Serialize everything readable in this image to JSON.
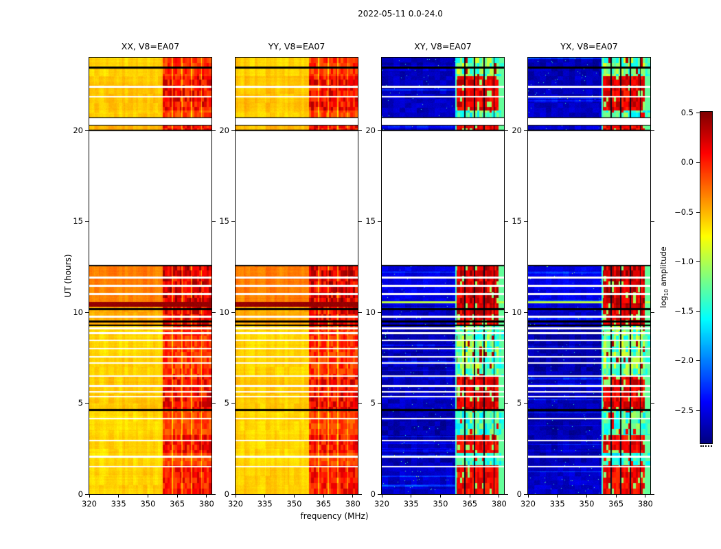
{
  "title": "2022-05-11 0.0-24.0",
  "axes": {
    "xlabel": "frequency (MHz)",
    "ylabel": "UT (hours)"
  },
  "colorbar_label": {
    "prefix": "log",
    "sub": "10",
    "suffix": " amplitude"
  },
  "chart_data": {
    "type": "heatmap",
    "title": "2022-05-11 0.0-24.0",
    "xlabel": "frequency (MHz)",
    "ylabel": "UT (hours)",
    "x": {
      "range": [
        320,
        382.5
      ],
      "ticks": [
        320,
        335,
        350,
        365,
        380
      ],
      "unit": "MHz"
    },
    "y": {
      "range": [
        0,
        24
      ],
      "ticks": [
        0,
        5,
        10,
        15,
        20
      ],
      "unit": "hours"
    },
    "colorbar": {
      "label": "log10 amplitude",
      "tick_labels": [
        "0.5",
        "0.0",
        "−0.5",
        "−1.0",
        "−1.5",
        "−2.0",
        "−2.5"
      ],
      "tick_values": [
        0.5,
        0.0,
        -0.5,
        -1.0,
        -1.5,
        -2.0,
        -2.5
      ],
      "range_top": 0.51,
      "range_bottom": -2.83,
      "colormap": "jet"
    },
    "panels": [
      {
        "id": "XX",
        "title": "XX, V8=EA07",
        "style": "warm",
        "seed": 1
      },
      {
        "id": "YY",
        "title": "YY, V8=EA07",
        "style": "warm",
        "seed": 2
      },
      {
        "id": "XY",
        "title": "XY, V8=EA07",
        "style": "cool",
        "seed": 3
      },
      {
        "id": "YX",
        "title": "YX, V8=EA07",
        "style": "cool",
        "seed": 4
      }
    ],
    "time_segments": [
      [
        0.0,
        12.62
      ],
      [
        19.98,
        20.32
      ],
      [
        20.68,
        24.0
      ]
    ],
    "white_gap_times": [
      1.5,
      2.05,
      2.95,
      4.15,
      5.35,
      5.62,
      5.95,
      6.5,
      7.2,
      7.55,
      8.0,
      8.45,
      8.85,
      9.12,
      9.75,
      11.0,
      11.45,
      11.9,
      21.85,
      22.4
    ],
    "black_line_times": [
      4.62,
      9.28,
      9.5,
      10.18,
      12.58,
      20.0,
      20.3,
      20.68,
      23.45
    ],
    "rfi": {
      "freq_start": 357.5,
      "column_gap_freqs": [
        362.4,
        367.4,
        372.4,
        377.4
      ]
    },
    "strong_band_warm": {
      "t0": 10.3,
      "t1": 10.58,
      "value": 0.44
    },
    "bright_line_cool": {
      "t": 10.55,
      "value": -0.95
    },
    "feature_bands": [
      {
        "t0": 0.0,
        "t1": 1.6,
        "strength": 0.75,
        "base_warm": -0.6,
        "base_cool": -2.58
      },
      {
        "t0": 1.6,
        "t1": 2.25,
        "strength": 0.45,
        "base_warm": -0.62,
        "base_cool": -2.66
      },
      {
        "t0": 2.25,
        "t1": 3.25,
        "strength": 0.8,
        "base_warm": -0.6,
        "base_cool": -2.64
      },
      {
        "t0": 3.25,
        "t1": 4.6,
        "strength": 0.5,
        "base_warm": -0.62,
        "base_cool": -2.68
      },
      {
        "t0": 4.6,
        "t1": 6.5,
        "strength": 0.85,
        "base_warm": -0.56,
        "base_cool": -2.62
      },
      {
        "t0": 6.5,
        "t1": 9.3,
        "strength": 0.6,
        "base_warm": -0.6,
        "base_cool": -2.68
      },
      {
        "t0": 9.3,
        "t1": 10.4,
        "strength": 0.9,
        "base_warm": -0.46,
        "base_cool": -2.6
      },
      {
        "t0": 10.4,
        "t1": 12.62,
        "strength": 1.0,
        "base_warm": -0.33,
        "base_cool": -2.48
      },
      {
        "t0": 19.98,
        "t1": 20.32,
        "strength": 0.8,
        "base_warm": -0.5,
        "base_cool": -2.55
      },
      {
        "t0": 20.68,
        "t1": 21.1,
        "strength": 0.5,
        "base_warm": -0.58,
        "base_cool": -2.6
      },
      {
        "t0": 21.1,
        "t1": 23.0,
        "strength": 0.85,
        "base_warm": -0.55,
        "base_cool": -2.62
      },
      {
        "t0": 23.0,
        "t1": 24.0,
        "strength": 0.6,
        "base_warm": -0.6,
        "base_cool": -2.66
      }
    ]
  }
}
